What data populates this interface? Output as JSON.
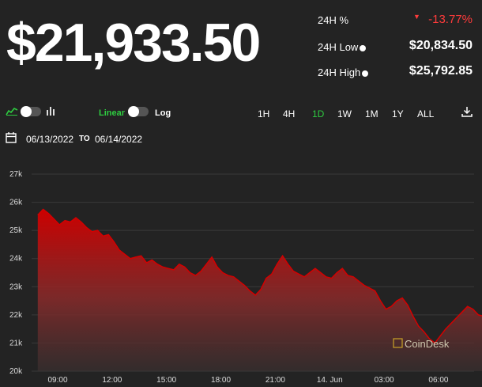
{
  "header": {
    "price": "$21,933.50",
    "change_label": "24H %",
    "change_value": "-13.77%",
    "low_label": "24H Low",
    "low_value": "$20,834.50",
    "high_label": "24H High",
    "high_value": "$25,792.85"
  },
  "toolbar": {
    "linear_label": "Linear",
    "log_label": "Log",
    "ranges": [
      "1H",
      "4H",
      "1D",
      "1W",
      "1M",
      "1Y",
      "ALL"
    ],
    "active_range": "1D"
  },
  "dates": {
    "from": "06/13/2022",
    "to_label": "TO",
    "to": "06/14/2022"
  },
  "watermark": "CoinDesk",
  "colors": {
    "accent_green": "#2ecc40",
    "negative_red": "#ff3b3b",
    "line_red": "#d40000"
  },
  "chart_data": {
    "type": "area",
    "y_ticks": [
      "20k",
      "21k",
      "22k",
      "23k",
      "24k",
      "25k",
      "26k",
      "27k"
    ],
    "x_ticks": [
      "09:00",
      "12:00",
      "15:00",
      "18:00",
      "21:00",
      "14. Jun",
      "03:00",
      "06:00"
    ],
    "ylim": [
      20000,
      27000
    ],
    "x_hours_tick_values": [
      0,
      3,
      6,
      9,
      12,
      15,
      18,
      21
    ],
    "series": [
      {
        "x": [
          -1.1,
          -0.8,
          -0.5,
          -0.2,
          0.1,
          0.4,
          0.7,
          1.0,
          1.3,
          1.6,
          1.9,
          2.2,
          2.5,
          2.8,
          3.1,
          3.4,
          3.7,
          4.0,
          4.3,
          4.6,
          4.9,
          5.2,
          5.5,
          5.8,
          6.1,
          6.4,
          6.7,
          7.0,
          7.3,
          7.6,
          7.9,
          8.2,
          8.5,
          8.8,
          9.1,
          9.4,
          9.7,
          10.0,
          10.3,
          10.6,
          10.9,
          11.2,
          11.5,
          11.8,
          12.1,
          12.4,
          12.7,
          13.0,
          13.3,
          13.6,
          13.9,
          14.2,
          14.5,
          14.8,
          15.1,
          15.4,
          15.7,
          16.0,
          16.3,
          16.6,
          16.9,
          17.2,
          17.5,
          17.8,
          18.1,
          18.4,
          18.7,
          19.0,
          19.3,
          19.6,
          19.9,
          20.2,
          20.5,
          20.8,
          21.1,
          21.4,
          21.7,
          22.0,
          22.3,
          22.6,
          22.9,
          23.2,
          23.5
        ],
        "y": [
          25550,
          25750,
          25600,
          25400,
          25200,
          25350,
          25300,
          25450,
          25300,
          25100,
          24950,
          25000,
          24800,
          24850,
          24600,
          24300,
          24150,
          24000,
          24050,
          24100,
          23850,
          23950,
          23800,
          23700,
          23650,
          23600,
          23800,
          23700,
          23500,
          23400,
          23550,
          23800,
          24050,
          23700,
          23500,
          23400,
          23350,
          23200,
          23050,
          22850,
          22700,
          22900,
          23300,
          23450,
          23800,
          24100,
          23800,
          23550,
          23450,
          23350,
          23500,
          23650,
          23500,
          23350,
          23300,
          23500,
          23650,
          23400,
          23350,
          23200,
          23050,
          22950,
          22850,
          22500,
          22200,
          22300,
          22500,
          22600,
          22350,
          21950,
          21600,
          21400,
          21150,
          21000,
          21250,
          21500,
          21700,
          21900,
          22100,
          22300,
          22200,
          22000,
          21950
        ]
      }
    ]
  }
}
